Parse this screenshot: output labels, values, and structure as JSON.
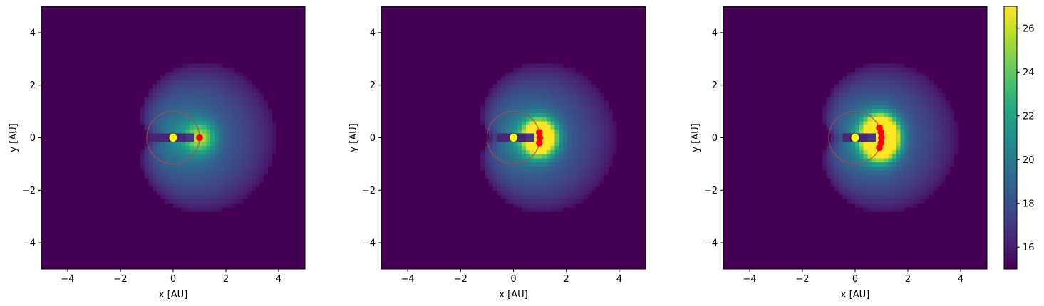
{
  "chart_data": [
    {
      "type": "heatmap",
      "xlabel": "x [AU]",
      "ylabel": "y [AU]",
      "xlim": [
        -5,
        5
      ],
      "ylim": [
        -5,
        5
      ],
      "xticks": [
        -4,
        -2,
        0,
        2,
        4
      ],
      "yticks": [
        -4,
        -2,
        0,
        2,
        4
      ],
      "xtick_labels": [
        "−4",
        "−2",
        "0",
        "2",
        "4"
      ],
      "ytick_labels": [
        "−4",
        "−2",
        "0",
        "2",
        "4"
      ],
      "sun": {
        "x": 0,
        "y": 0,
        "color": "#ffff00"
      },
      "orbit_circle": {
        "cx": 0,
        "cy": 0,
        "r": 1,
        "color": "#a05050"
      },
      "points": [
        {
          "x": 1.0,
          "y": 0.0
        }
      ],
      "points_color": "#ff0000",
      "shadow_extent": 1.0
    },
    {
      "type": "heatmap",
      "xlabel": "x [AU]",
      "ylabel": "y [AU]",
      "xlim": [
        -5,
        5
      ],
      "ylim": [
        -5,
        5
      ],
      "xticks": [
        -4,
        -2,
        0,
        2,
        4
      ],
      "yticks": [
        -4,
        -2,
        0,
        2,
        4
      ],
      "xtick_labels": [
        "−4",
        "−2",
        "0",
        "2",
        "4"
      ],
      "ytick_labels": [
        "−4",
        "−2",
        "0",
        "2",
        "4"
      ],
      "sun": {
        "x": 0,
        "y": 0,
        "color": "#ffff00"
      },
      "orbit_circle": {
        "cx": 0,
        "cy": 0,
        "r": 1,
        "color": "#a05050"
      },
      "points": [
        {
          "x": 0.98,
          "y": 0.2
        },
        {
          "x": 1.0,
          "y": 0.0
        },
        {
          "x": 0.98,
          "y": -0.2
        }
      ],
      "points_color": "#ff0000",
      "shadow_extent": 0.7
    },
    {
      "type": "heatmap",
      "xlabel": "x [AU]",
      "ylabel": "y [AU]",
      "xlim": [
        -5,
        5
      ],
      "ylim": [
        -5,
        5
      ],
      "xticks": [
        -4,
        -2,
        0,
        2,
        4
      ],
      "yticks": [
        -4,
        -2,
        0,
        2,
        4
      ],
      "xtick_labels": [
        "−4",
        "−2",
        "0",
        "2",
        "4"
      ],
      "ytick_labels": [
        "−4",
        "−2",
        "0",
        "2",
        "4"
      ],
      "sun": {
        "x": 0,
        "y": 0,
        "color": "#ffff00"
      },
      "orbit_circle": {
        "cx": 0,
        "cy": 0,
        "r": 1,
        "color": "#a05050"
      },
      "points": [
        {
          "x": 0.92,
          "y": 0.38
        },
        {
          "x": 0.98,
          "y": 0.2
        },
        {
          "x": 1.0,
          "y": 0.0
        },
        {
          "x": 0.98,
          "y": -0.2
        },
        {
          "x": 0.92,
          "y": -0.38
        }
      ],
      "points_color": "#ff0000",
      "shadow_extent": 0.45
    }
  ],
  "colorbar": {
    "colormap": "viridis",
    "range": [
      15,
      27
    ],
    "ticks": [
      16,
      18,
      20,
      22,
      24,
      26
    ],
    "tick_labels": [
      "16",
      "18",
      "20",
      "22",
      "24",
      "26"
    ]
  }
}
